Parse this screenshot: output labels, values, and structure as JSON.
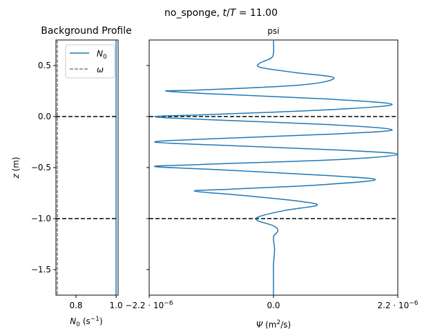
{
  "figure": {
    "suptitle_prefix": "no_sponge, ",
    "suptitle_math_t": "t",
    "suptitle_math_T": "T",
    "suptitle_value": " = 11.00"
  },
  "chart_data": [
    {
      "type": "line",
      "title": "Background Profile",
      "xlabel_var": "N",
      "xlabel_sub": "0",
      "xlabel_unit": " (s",
      "xlabel_unit_exp": "−1",
      "xlabel_unit_end": ")",
      "ylabel_var": "z",
      "ylabel_unit": " (m)",
      "xlim": [
        0.7,
        1.01
      ],
      "ylim": [
        -1.75,
        0.75
      ],
      "x_ticks": [
        {
          "value": 0.8,
          "label": "0.8"
        },
        {
          "value": 1.0,
          "label": "1.0"
        }
      ],
      "y_ticks": [
        {
          "value": 0.5,
          "label": "0.5"
        },
        {
          "value": 0.0,
          "label": "0.0"
        },
        {
          "value": -0.5,
          "label": "−0.5"
        },
        {
          "value": -1.0,
          "label": "−1.0"
        },
        {
          "value": -1.5,
          "label": "−1.5"
        }
      ],
      "series": [
        {
          "name_var": "N",
          "name_sub": "0",
          "style": "solid",
          "color": "#1f77b4",
          "x": 1.0
        },
        {
          "name_var": "ω",
          "style": "dashed",
          "color": "#708090",
          "x": 0.707
        }
      ],
      "hlines": [
        0.0,
        -1.0
      ],
      "legend_position": "top-right"
    },
    {
      "type": "line",
      "title": "psi",
      "xlabel_var": "Ψ",
      "xlabel_unit": " (m",
      "xlabel_unit_exp": "2",
      "xlabel_unit_end": "/s)",
      "xlim": [
        -2.2e-06,
        2.2e-06
      ],
      "ylim": [
        -1.75,
        0.75
      ],
      "x_ticks": [
        {
          "value": -2.2e-06,
          "label_base": "−2.2 · 10",
          "label_exp": "−6"
        },
        {
          "value": 0.0,
          "label_base": "0.0",
          "label_exp": ""
        },
        {
          "value": 2.2e-06,
          "label_base": "2.2 · 10",
          "label_exp": "−6"
        }
      ],
      "y_ticks_shared": true,
      "hlines": [
        0.0,
        -1.0
      ],
      "series": [
        {
          "name": "psi",
          "color": "#1f77b4",
          "points": [
            [
              0.0,
              0.75
            ],
            [
              0.0,
              0.62
            ],
            [
              -5e-08,
              0.57
            ],
            [
              -2.5e-07,
              0.52
            ],
            [
              -2.2e-07,
              0.48
            ],
            [
              4e-07,
              0.43
            ],
            [
              1.07e-06,
              0.38
            ],
            [
              5e-07,
              0.31
            ],
            [
              -1.3e-06,
              0.26
            ],
            [
              -1.9e-06,
              0.25
            ],
            [
              -1e-06,
              0.22
            ],
            [
              1e-06,
              0.17
            ],
            [
              2.1e-06,
              0.12
            ],
            [
              1.1e-06,
              0.07
            ],
            [
              -1.1e-06,
              0.02
            ],
            [
              -2.1e-06,
              0.0
            ],
            [
              -1.2e-06,
              -0.03
            ],
            [
              1e-06,
              -0.08
            ],
            [
              2.1e-06,
              -0.13
            ],
            [
              1.1e-06,
              -0.17
            ],
            [
              -1.2e-06,
              -0.22
            ],
            [
              -2.1e-06,
              -0.25
            ],
            [
              -1e-06,
              -0.28
            ],
            [
              1.2e-06,
              -0.33
            ],
            [
              2.2e-06,
              -0.37
            ],
            [
              1.2e-06,
              -0.42
            ],
            [
              -1.3e-06,
              -0.47
            ],
            [
              -2.1e-06,
              -0.49
            ],
            [
              -1e-06,
              -0.52
            ],
            [
              1e-06,
              -0.58
            ],
            [
              1.8e-06,
              -0.62
            ],
            [
              8e-07,
              -0.67
            ],
            [
              -7e-07,
              -0.71
            ],
            [
              -1.4e-06,
              -0.73
            ],
            [
              -6e-07,
              -0.77
            ],
            [
              4.5e-07,
              -0.83
            ],
            [
              7.7e-07,
              -0.87
            ],
            [
              2e-07,
              -0.92
            ],
            [
              -2.5e-07,
              -0.98
            ],
            [
              -2.8e-07,
              -1.02
            ],
            [
              0.0,
              -1.07
            ],
            [
              8e-08,
              -1.12
            ],
            [
              0.0,
              -1.18
            ],
            [
              2e-08,
              -1.3
            ],
            [
              0.0,
              -1.45
            ],
            [
              0.0,
              -1.6
            ],
            [
              0.0,
              -1.75
            ]
          ]
        }
      ],
      "subplot_ticks_present_but_unlabeled_y": true
    }
  ]
}
